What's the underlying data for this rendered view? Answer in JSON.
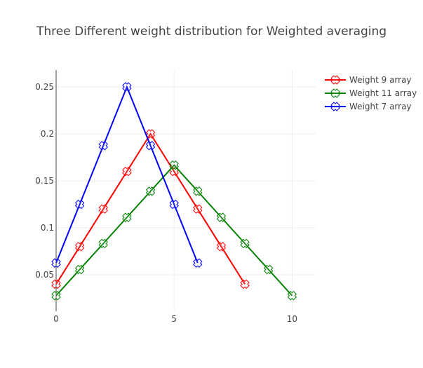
{
  "chart_data": {
    "type": "line",
    "title": "Three Different weight distribution for Weighted averaging",
    "xlabel": "",
    "ylabel": "",
    "xlim": [
      0,
      11
    ],
    "ylim": [
      0.01,
      0.268
    ],
    "x_ticks": [
      0,
      5,
      10
    ],
    "y_ticks": [
      0.05,
      0.1,
      0.15,
      0.2,
      0.25
    ],
    "grid": true,
    "legend_position": "top-right",
    "marker": "x-thin-open",
    "series": [
      {
        "name": "Weight 9 array",
        "color": "#ff0000",
        "x": [
          0,
          1,
          2,
          3,
          4,
          5,
          6,
          7,
          8
        ],
        "values": [
          0.04,
          0.08,
          0.12,
          0.16,
          0.2,
          0.16,
          0.12,
          0.08,
          0.04
        ]
      },
      {
        "name": "Weight 11 array",
        "color": "#008000",
        "x": [
          0,
          1,
          2,
          3,
          4,
          5,
          6,
          7,
          8,
          9,
          10
        ],
        "values": [
          0.0278,
          0.0556,
          0.0833,
          0.1111,
          0.1389,
          0.1667,
          0.1389,
          0.1111,
          0.0833,
          0.0556,
          0.0278
        ]
      },
      {
        "name": "Weight 7 array",
        "color": "#0000ff",
        "x": [
          0,
          1,
          2,
          3,
          4,
          5,
          6
        ],
        "values": [
          0.0625,
          0.125,
          0.1875,
          0.25,
          0.1875,
          0.125,
          0.0625
        ]
      }
    ]
  }
}
